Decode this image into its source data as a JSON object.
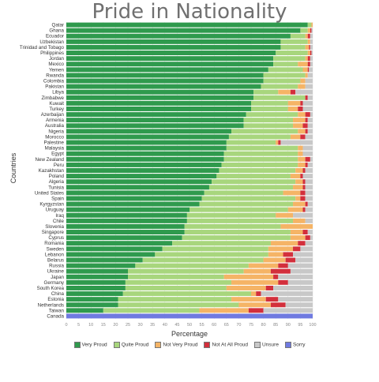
{
  "chart_data": {
    "type": "bar",
    "orientation": "horizontal",
    "stacked": true,
    "title": "Pride in Nationality",
    "xlabel": "Percentage",
    "ylabel": "Countries",
    "xlim": [
      0,
      100
    ],
    "xticks": [
      "0",
      "5",
      "10",
      "15",
      "20",
      "25",
      "30",
      "35",
      "40",
      "45",
      "50",
      "55",
      "60",
      "65",
      "70",
      "75",
      "80",
      "85",
      "90",
      "95",
      "100"
    ],
    "grid": true,
    "legend_position": "bottom",
    "categories": [
      "Qatar",
      "Ghana",
      "Ecuador",
      "Uzbekistan",
      "Trinidad and Tobago",
      "Philippines",
      "Jordan",
      "Mexico",
      "Yemen",
      "Rwanda",
      "Colombia",
      "Pakistan",
      "Libya",
      "Zimbabwe",
      "Kuwait",
      "Turkey",
      "Azerbaijan",
      "Armenia",
      "Australia",
      "Nigeria",
      "Morocco",
      "Palestine",
      "Malaysia",
      "Egypt",
      "New Zealand",
      "Peru",
      "Kazakhstan",
      "Poland",
      "Algeria",
      "Tunisia",
      "United States",
      "Spain",
      "Kyrgyzstan",
      "Uruguay",
      "Iraq",
      "Chile",
      "Slovenia",
      "Singapore",
      "Cyprus",
      "Romania",
      "Sweden",
      "Lebanon",
      "Belarus",
      "Russia",
      "Ukraine",
      "Japan",
      "Germany",
      "South Korea",
      "China",
      "Estonia",
      "Netherlands",
      "Taiwan",
      "Canada"
    ],
    "series": [
      {
        "name": "Very Proud",
        "color": "#2f9a4d",
        "values": [
          98,
          95,
          91,
          87,
          87,
          85,
          84,
          84,
          82,
          80,
          80,
          79,
          76,
          76,
          75,
          75,
          73,
          72,
          72,
          67,
          66,
          65,
          65,
          64,
          64,
          63,
          62,
          61,
          59,
          58,
          56,
          55,
          54,
          50,
          49,
          49,
          48,
          48,
          47,
          43,
          39,
          36,
          31,
          28,
          25,
          25,
          24,
          24,
          23,
          21,
          21,
          15,
          0
        ]
      },
      {
        "name": "Quite Proud",
        "color": "#a8d67d",
        "values": [
          1.5,
          3,
          6,
          11,
          10,
          13,
          13,
          10,
          14,
          17,
          15,
          15,
          10,
          21,
          15,
          15,
          21,
          20,
          20,
          27,
          25,
          20,
          29,
          30,
          30,
          31,
          31,
          30,
          34,
          34,
          32,
          38,
          38,
          40,
          36,
          43,
          39,
          43,
          44,
          40,
          43,
          46,
          49,
          46,
          47,
          39,
          43,
          41,
          52,
          46,
          49,
          39,
          0
        ]
      },
      {
        "name": "Not Very Proud",
        "color": "#f5b466",
        "values": [
          0.5,
          1,
          1,
          1,
          1.5,
          1,
          1,
          4,
          2,
          1,
          2,
          3,
          5,
          0,
          5,
          4,
          3,
          5,
          4,
          3,
          4,
          1,
          2,
          2,
          3,
          3,
          3,
          4,
          3,
          4,
          7,
          2,
          5,
          6,
          7,
          5,
          13,
          5,
          6,
          11,
          10,
          6,
          9,
          12,
          11,
          20,
          19,
          16,
          2,
          14,
          13,
          20,
          0
        ]
      },
      {
        "name": "Not At All Proud",
        "color": "#d32f3c",
        "values": [
          0,
          0.5,
          1,
          0,
          0.5,
          0.5,
          1,
          1,
          0.5,
          0,
          0,
          0,
          2,
          1,
          1,
          2,
          2,
          1,
          2,
          1,
          2,
          1,
          0,
          0,
          2,
          1,
          1,
          1,
          1,
          1,
          2,
          2,
          1,
          1,
          0,
          0,
          0,
          2,
          2,
          3,
          3,
          4,
          4,
          4,
          8,
          2,
          4,
          3,
          2,
          5,
          6,
          6,
          0
        ]
      },
      {
        "name": "Unsure",
        "color": "#c8c8c8",
        "values": [
          0,
          0.5,
          1,
          1,
          1,
          0.5,
          1,
          1,
          1.5,
          2,
          3,
          3,
          7,
          2,
          4,
          4,
          1,
          2,
          2,
          2,
          3,
          13,
          4,
          4,
          1,
          2,
          3,
          4,
          3,
          3,
          3,
          3,
          2,
          3,
          8,
          3,
          0,
          2,
          1,
          3,
          5,
          8,
          7,
          10,
          9,
          14,
          10,
          16,
          21,
          14,
          11,
          20,
          0
        ]
      },
      {
        "name": "Sorry",
        "color": "#6f7ae0",
        "values": [
          0,
          0,
          0,
          0,
          0,
          0,
          0,
          0,
          0,
          0,
          0,
          0,
          0,
          0,
          0,
          0,
          0,
          0,
          0,
          0,
          0,
          0,
          0,
          0,
          0,
          0,
          0,
          0,
          0,
          0,
          0,
          0,
          0,
          0,
          0,
          0,
          0,
          0,
          0,
          0,
          0,
          0,
          0,
          0,
          0,
          0,
          0,
          0,
          0,
          0,
          0,
          0,
          100
        ]
      }
    ]
  }
}
